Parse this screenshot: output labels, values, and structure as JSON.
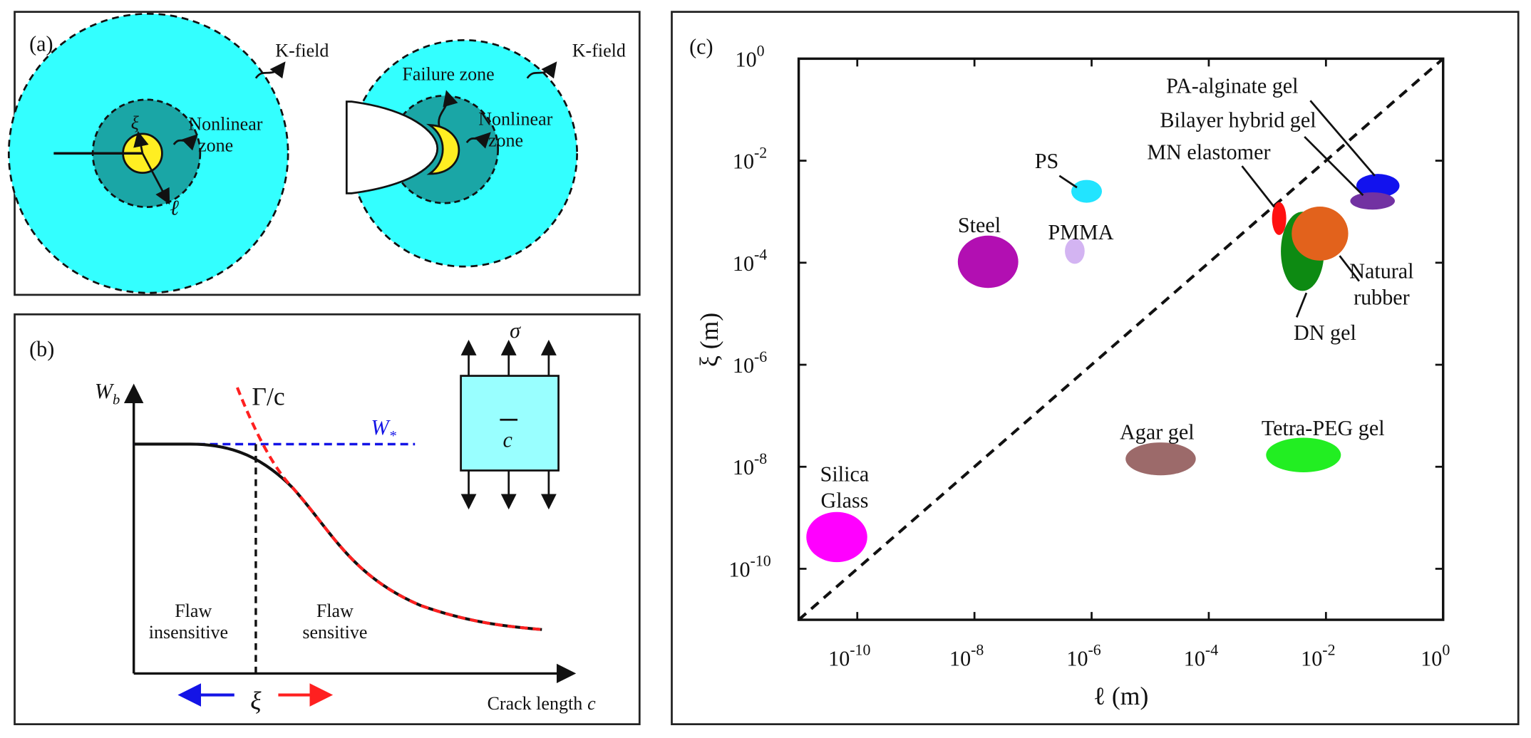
{
  "panel_a": {
    "label": "(a)",
    "left": {
      "k_field": "K-field",
      "nonlinear_zone": [
        "Nonlinear",
        "zone"
      ],
      "xi": "ξ",
      "ell": "ℓ"
    },
    "right": {
      "k_field": "K-field",
      "failure_zone": "Failure zone",
      "nonlinear_zone": [
        "Nonlinear",
        "zone"
      ]
    }
  },
  "panel_b": {
    "label": "(b)",
    "y_label": {
      "main": "W",
      "sub": "b"
    },
    "gamma_c": "Γ/c",
    "w_star": {
      "main": "W",
      "sub": "*"
    },
    "sigma": "σ",
    "crack": "c",
    "flaw_insensitive": [
      "Flaw",
      "insensitive"
    ],
    "flaw_sensitive": [
      "Flaw",
      "sensitive"
    ],
    "xi": "ξ",
    "x_label": {
      "text": "Crack length",
      "var": "c"
    }
  },
  "chart_data": {
    "type": "scatter",
    "panel_label": "(c)",
    "xlabel": "ℓ (m)",
    "ylabel": "ξ (m)",
    "log_x": true,
    "log_y": true,
    "xlim": [
      1e-11,
      1
    ],
    "ylim": [
      1e-11,
      1
    ],
    "xticks": [
      {
        "value": 1e-10,
        "label": "10",
        "exponent": "-10"
      },
      {
        "value": 1e-08,
        "label": "10",
        "exponent": "-8"
      },
      {
        "value": 1e-06,
        "label": "10",
        "exponent": "-6"
      },
      {
        "value": 0.0001,
        "label": "10",
        "exponent": "-4"
      },
      {
        "value": 0.01,
        "label": "10",
        "exponent": "-2"
      },
      {
        "value": 1,
        "label": "10",
        "exponent": "0"
      }
    ],
    "yticks": [
      {
        "value": 1e-10,
        "label": "10",
        "exponent": "-10"
      },
      {
        "value": 1e-08,
        "label": "10",
        "exponent": "-8"
      },
      {
        "value": 1e-06,
        "label": "10",
        "exponent": "-6"
      },
      {
        "value": 0.0001,
        "label": "10",
        "exponent": "-4"
      },
      {
        "value": 0.01,
        "label": "10",
        "exponent": "-2"
      },
      {
        "value": 1,
        "label": "10",
        "exponent": "0"
      }
    ],
    "series": [
      {
        "name": "Silica Glass",
        "color": "#ff00ff",
        "x_range": [
          1.35e-11,
          1.48e-10
        ],
        "y_range": [
          1.35e-10,
          1.3e-09
        ]
      },
      {
        "name": "Steel",
        "color": "#b20fb2",
        "x_range": [
          5.2e-09,
          5.6e-08
        ],
        "y_range": [
          3.2e-05,
          0.00034
        ]
      },
      {
        "name": "PS",
        "color": "#22e4ff",
        "x_range": [
          4.5e-07,
          1.5e-06
        ],
        "y_range": [
          0.0015,
          0.0042
        ]
      },
      {
        "name": "PMMA",
        "color": "#d3b4f2",
        "x_range": [
          3.5e-07,
          7.6e-07
        ],
        "y_range": [
          9.5e-05,
          0.0003
        ]
      },
      {
        "name": "MN elastomer",
        "color": "#ff1010",
        "x_range": [
          0.0012,
          0.0021
        ],
        "y_range": [
          0.00035,
          0.00155
        ]
      },
      {
        "name": "DN gel",
        "color": "#0d8a12",
        "x_range": [
          0.0017,
          0.0093
        ],
        "y_range": [
          2.8e-05,
          0.001
        ]
      },
      {
        "name": "Natural rubber",
        "color": "#e2621c",
        "x_range": [
          0.0026,
          0.024
        ],
        "y_range": [
          0.00011,
          0.00126
        ]
      },
      {
        "name": "PA-alginate gel",
        "color": "#1212ee",
        "x_range": [
          0.033,
          0.18
        ],
        "y_range": [
          0.0019,
          0.0055
        ]
      },
      {
        "name": "Bilayer hybrid gel",
        "color": "#7232a2",
        "x_range": [
          0.026,
          0.15
        ],
        "y_range": [
          0.0011,
          0.0024
        ]
      },
      {
        "name": "Agar gel",
        "color": "#9c6a6a",
        "x_range": [
          3.8e-06,
          6e-05
        ],
        "y_range": [
          6.8e-09,
          3e-08
        ]
      },
      {
        "name": "Tetra-PEG gel",
        "color": "#22ee22",
        "x_range": [
          0.00095,
          0.018
        ],
        "y_range": [
          7.8e-09,
          3.7e-08
        ]
      }
    ]
  }
}
